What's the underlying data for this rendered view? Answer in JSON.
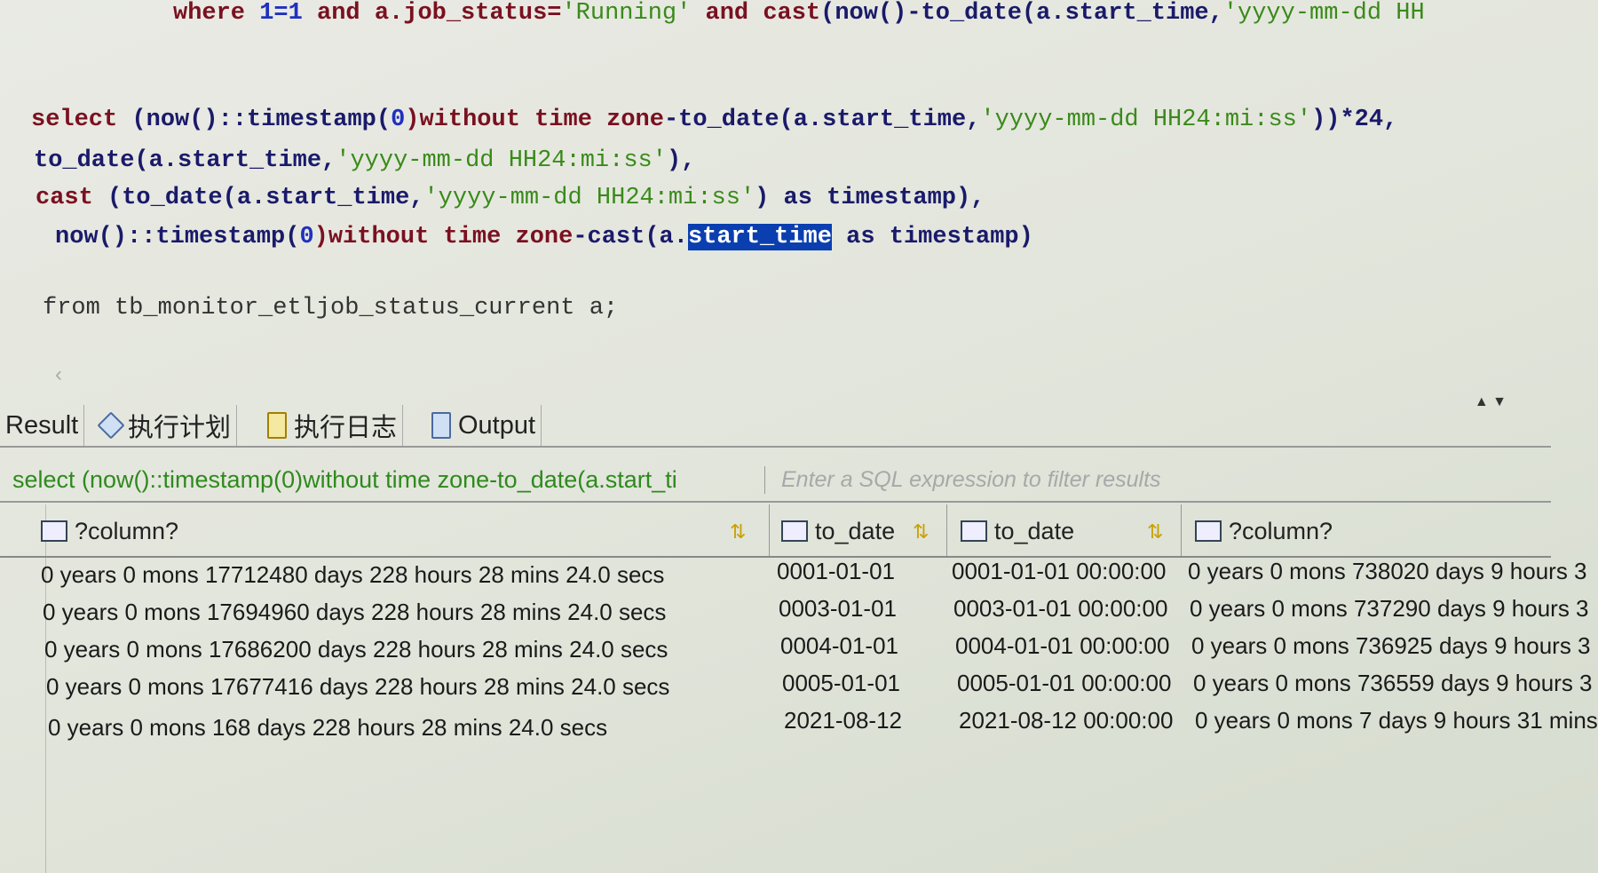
{
  "editor": {
    "line1": [
      "where ",
      "1=1",
      " and a.job_status=",
      "'Running'",
      " and cast",
      "(now()-to_date(a.start_time,",
      "'yyyy-mm-dd HH"
    ],
    "line2": [
      "select ",
      "(now()::timestamp(",
      "0",
      ")without time zone",
      "-to_date(a.start_time,",
      "'yyyy-mm-dd HH24:mi:ss'",
      "))*24,"
    ],
    "line3": [
      "to_date(a.start_time,",
      "'yyyy-mm-dd HH24:mi:ss'",
      "),"
    ],
    "line4": [
      "cast ",
      "(to_date(a.start_time,",
      "'yyyy-mm-dd HH24:mi:ss'",
      ") as timestamp),"
    ],
    "line5": [
      "now()::timestamp(",
      "0",
      ")without time zone",
      "-cast(a.",
      "start_time",
      " as timestamp)"
    ],
    "line6": "from tb_monitor_etljob_status_current a;"
  },
  "tabs": [
    "Result",
    "执行计划",
    "执行日志",
    "Output"
  ],
  "filter": {
    "query": "select (now()::timestamp(0)without time zone-to_date(a.start_ti",
    "placeholder": "Enter a SQL expression to filter results"
  },
  "columns": [
    "?column?",
    "to_date",
    "to_date",
    "?column?"
  ],
  "rows": [
    [
      "0 years 0 mons 17712480 days 228 hours 28 mins 24.0 secs",
      "0001-01-01",
      "0001-01-01 00:00:00",
      "0 years 0 mons 738020 days 9 hours 3"
    ],
    [
      "0 years 0 mons 17694960 days 228 hours 28 mins 24.0 secs",
      "0003-01-01",
      "0003-01-01 00:00:00",
      "0 years 0 mons 737290 days 9 hours 3"
    ],
    [
      "0 years 0 mons 17686200 days 228 hours 28 mins 24.0 secs",
      "0004-01-01",
      "0004-01-01 00:00:00",
      "0 years 0 mons 736925 days 9 hours 3"
    ],
    [
      "0 years 0 mons 17677416 days 228 hours 28 mins 24.0 secs",
      "0005-01-01",
      "0005-01-01 00:00:00",
      "0 years 0 mons 736559 days 9 hours 3"
    ],
    [
      "0 years 0 mons 168 days 228 hours 28 mins 24.0 secs",
      "2021-08-12",
      "2021-08-12 00:00:00",
      "0 years 0 mons 7 days 9 hours 31 mins"
    ]
  ]
}
